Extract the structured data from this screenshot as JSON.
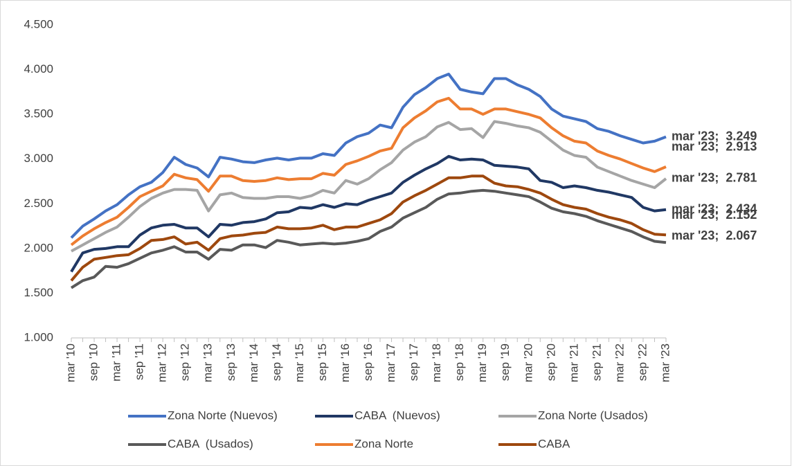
{
  "chart_data": {
    "type": "line",
    "categories": [
      "mar '10",
      null,
      "sep '10",
      null,
      "mar '11",
      null,
      "sep '11",
      null,
      "mar '12",
      null,
      "sep '12",
      null,
      "mar '13",
      null,
      "sep '13",
      null,
      "mar '14",
      null,
      "sep '14",
      null,
      "mar '15",
      null,
      "sep '15",
      null,
      "mar '16",
      null,
      "sep '16",
      null,
      "mar '17",
      null,
      "sep '17",
      null,
      "mar '18",
      null,
      "sep '18",
      null,
      "mar '19",
      null,
      "sep '19",
      null,
      "mar '20",
      null,
      "sep '20",
      null,
      "mar '21",
      null,
      "sep '21",
      null,
      "mar '22",
      null,
      "sep '22",
      null,
      "mar '23"
    ],
    "ylim": [
      1000,
      4500
    ],
    "yticks": [
      {
        "value": 1000,
        "label": "1.000"
      },
      {
        "value": 1500,
        "label": "1.500"
      },
      {
        "value": 2000,
        "label": "2.000"
      },
      {
        "value": 2500,
        "label": "2.500"
      },
      {
        "value": 3000,
        "label": "3.000"
      },
      {
        "value": 3500,
        "label": "3.500"
      },
      {
        "value": 4000,
        "label": "4.000"
      },
      {
        "value": 4500,
        "label": "4.500"
      }
    ],
    "grid": false,
    "legend": "bottom",
    "series": [
      {
        "name": "Zona Norte (Nuevos)",
        "color": "#4472c4",
        "values": [
          2120,
          2250,
          2330,
          2420,
          2490,
          2600,
          2690,
          2740,
          2850,
          3020,
          2940,
          2900,
          2800,
          3020,
          3000,
          2970,
          2960,
          2990,
          3010,
          2990,
          3010,
          3010,
          3060,
          3040,
          3180,
          3250,
          3290,
          3380,
          3350,
          3580,
          3720,
          3800,
          3900,
          3950,
          3780,
          3750,
          3730,
          3900,
          3900,
          3830,
          3780,
          3700,
          3560,
          3480,
          3450,
          3420,
          3340,
          3310,
          3260,
          3220,
          3180,
          3200,
          3249
        ],
        "value_labels": [
          null,
          null,
          null,
          null,
          null,
          null,
          null,
          null,
          null,
          null,
          null,
          null,
          null,
          null,
          null,
          null,
          null,
          null,
          null,
          null,
          null,
          null,
          null,
          null,
          null,
          null,
          null,
          null,
          null,
          null,
          null,
          null,
          null,
          null,
          null,
          null,
          null,
          null,
          null,
          null,
          null,
          null,
          null,
          null,
          null,
          null,
          null,
          null,
          null,
          null,
          null,
          null,
          "mar '23;  3.249"
        ]
      },
      {
        "name": "CABA  (Nuevos)",
        "color": "#203864",
        "values": [
          1740,
          1950,
          1990,
          2000,
          2020,
          2020,
          2150,
          2230,
          2260,
          2270,
          2230,
          2230,
          2130,
          2270,
          2260,
          2290,
          2300,
          2330,
          2400,
          2410,
          2460,
          2450,
          2490,
          2460,
          2500,
          2490,
          2540,
          2580,
          2620,
          2740,
          2820,
          2890,
          2950,
          3030,
          2990,
          3000,
          2990,
          2930,
          2920,
          2910,
          2890,
          2760,
          2740,
          2680,
          2700,
          2680,
          2650,
          2630,
          2600,
          2570,
          2460,
          2420,
          2434
        ],
        "value_labels": [
          null,
          null,
          null,
          null,
          null,
          null,
          null,
          null,
          null,
          null,
          null,
          null,
          null,
          null,
          null,
          null,
          null,
          null,
          null,
          null,
          null,
          null,
          null,
          null,
          null,
          null,
          null,
          null,
          null,
          null,
          null,
          null,
          null,
          null,
          null,
          null,
          null,
          null,
          null,
          null,
          null,
          null,
          null,
          null,
          null,
          null,
          null,
          null,
          null,
          null,
          null,
          null,
          "mar '23;  2.434"
        ]
      },
      {
        "name": "Zona Norte (Usados)",
        "color": "#a5a5a5",
        "values": [
          1970,
          2040,
          2110,
          2180,
          2240,
          2350,
          2470,
          2560,
          2620,
          2660,
          2660,
          2650,
          2420,
          2600,
          2620,
          2570,
          2560,
          2560,
          2580,
          2580,
          2560,
          2590,
          2650,
          2620,
          2760,
          2720,
          2780,
          2880,
          2960,
          3100,
          3190,
          3250,
          3360,
          3410,
          3330,
          3340,
          3240,
          3420,
          3400,
          3370,
          3350,
          3300,
          3200,
          3100,
          3040,
          3020,
          2910,
          2860,
          2810,
          2760,
          2720,
          2680,
          2781
        ],
        "value_labels": [
          null,
          null,
          null,
          null,
          null,
          null,
          null,
          null,
          null,
          null,
          null,
          null,
          null,
          null,
          null,
          null,
          null,
          null,
          null,
          null,
          null,
          null,
          null,
          null,
          null,
          null,
          null,
          null,
          null,
          null,
          null,
          null,
          null,
          null,
          null,
          null,
          null,
          null,
          null,
          null,
          null,
          null,
          null,
          null,
          null,
          null,
          null,
          null,
          null,
          null,
          null,
          null,
          "mar '23;  2.781"
        ]
      },
      {
        "name": "CABA  (Usados)",
        "color": "#595959",
        "values": [
          1560,
          1640,
          1680,
          1800,
          1790,
          1830,
          1890,
          1950,
          1980,
          2020,
          1960,
          1960,
          1880,
          1990,
          1980,
          2040,
          2040,
          2010,
          2090,
          2070,
          2040,
          2050,
          2060,
          2050,
          2060,
          2080,
          2110,
          2190,
          2240,
          2340,
          2400,
          2460,
          2550,
          2610,
          2620,
          2640,
          2650,
          2640,
          2620,
          2600,
          2580,
          2520,
          2450,
          2410,
          2390,
          2360,
          2310,
          2270,
          2230,
          2190,
          2130,
          2080,
          2067
        ],
        "value_labels": [
          null,
          null,
          null,
          null,
          null,
          null,
          null,
          null,
          null,
          null,
          null,
          null,
          null,
          null,
          null,
          null,
          null,
          null,
          null,
          null,
          null,
          null,
          null,
          null,
          null,
          null,
          null,
          null,
          null,
          null,
          null,
          null,
          null,
          null,
          null,
          null,
          null,
          null,
          null,
          null,
          null,
          null,
          null,
          null,
          null,
          null,
          null,
          null,
          null,
          null,
          null,
          null,
          "mar '23;  2.067"
        ]
      },
      {
        "name": "Zona Norte",
        "color": "#ed7d31",
        "values": [
          2040,
          2140,
          2220,
          2290,
          2350,
          2460,
          2580,
          2640,
          2700,
          2830,
          2790,
          2770,
          2640,
          2810,
          2810,
          2760,
          2750,
          2760,
          2790,
          2770,
          2780,
          2780,
          2840,
          2820,
          2940,
          2980,
          3030,
          3090,
          3120,
          3350,
          3460,
          3540,
          3640,
          3680,
          3560,
          3560,
          3500,
          3560,
          3560,
          3530,
          3500,
          3460,
          3350,
          3260,
          3200,
          3180,
          3090,
          3040,
          3000,
          2950,
          2900,
          2860,
          2913
        ],
        "value_labels": [
          null,
          null,
          null,
          null,
          null,
          null,
          null,
          null,
          null,
          null,
          null,
          null,
          null,
          null,
          null,
          null,
          null,
          null,
          null,
          null,
          null,
          null,
          null,
          null,
          null,
          null,
          null,
          null,
          null,
          null,
          null,
          null,
          null,
          null,
          null,
          null,
          null,
          null,
          null,
          null,
          null,
          null,
          null,
          null,
          null,
          null,
          null,
          null,
          null,
          null,
          null,
          null,
          "mar '23;  2.913"
        ]
      },
      {
        "name": "CABA",
        "color": "#9e480e",
        "values": [
          1640,
          1790,
          1880,
          1900,
          1920,
          1930,
          2000,
          2090,
          2100,
          2130,
          2050,
          2070,
          1980,
          2110,
          2140,
          2150,
          2170,
          2180,
          2240,
          2220,
          2220,
          2230,
          2260,
          2210,
          2240,
          2240,
          2280,
          2320,
          2390,
          2520,
          2590,
          2650,
          2720,
          2790,
          2790,
          2810,
          2810,
          2730,
          2700,
          2690,
          2660,
          2620,
          2550,
          2490,
          2460,
          2440,
          2390,
          2350,
          2320,
          2280,
          2210,
          2160,
          2152
        ],
        "value_labels": [
          null,
          null,
          null,
          null,
          null,
          null,
          null,
          null,
          null,
          null,
          null,
          null,
          null,
          null,
          null,
          null,
          null,
          null,
          null,
          null,
          null,
          null,
          null,
          null,
          null,
          null,
          null,
          null,
          null,
          null,
          null,
          null,
          null,
          null,
          null,
          null,
          null,
          null,
          null,
          null,
          null,
          null,
          null,
          null,
          null,
          null,
          null,
          null,
          null,
          null,
          null,
          null,
          "mar '23;  2.152"
        ]
      }
    ]
  }
}
